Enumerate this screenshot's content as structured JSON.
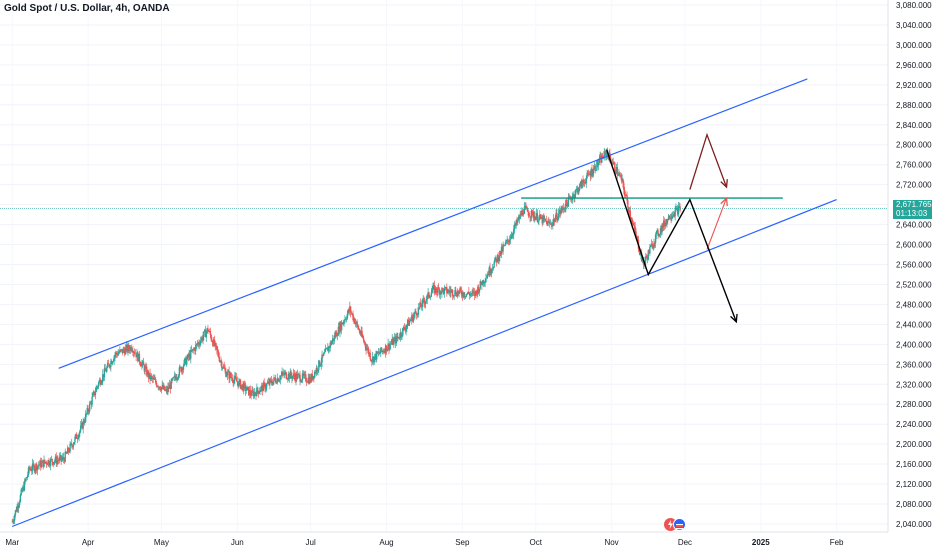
{
  "header": {
    "title": "Gold Spot / U.S. Dollar, 4h, OANDA"
  },
  "current_price": {
    "value": "2,671.765",
    "countdown": "01:13:03"
  },
  "icons": {
    "flash": "flash-icon",
    "flag": "flag-icon"
  },
  "colors": {
    "up": "#26a69a",
    "down": "#ef5350",
    "channel": "#2962ff",
    "resistance": "#089981",
    "projection_up": "#7f1d1d",
    "projection_down": "#000000",
    "projection_alt": "#ef5350"
  },
  "chart_data": {
    "type": "candlestick",
    "title": "Gold Spot / U.S. Dollar, 4h, OANDA",
    "x_ticks": [
      "Mar",
      "Apr",
      "May",
      "Jun",
      "Jul",
      "Aug",
      "Sep",
      "Oct",
      "Nov",
      "Dec",
      "2025",
      "Feb"
    ],
    "y_ticks": [
      "3,080.000",
      "3,040.000",
      "3,000.000",
      "2,960.000",
      "2,920.000",
      "2,880.000",
      "2,840.000",
      "2,800.000",
      "2,760.000",
      "2,720.000",
      "2,680.000",
      "2,640.000",
      "2,600.000",
      "2,560.000",
      "2,520.000",
      "2,480.000",
      "2,440.000",
      "2,400.000",
      "2,360.000",
      "2,320.000",
      "2,280.000",
      "2,240.000",
      "2,200.000",
      "2,160.000",
      "2,120.000",
      "2,080.000",
      "2,040.000"
    ],
    "ylim": [
      2030,
      3090
    ],
    "price_path": [
      {
        "date": "2024-03-01",
        "price": 2045
      },
      {
        "date": "2024-03-08",
        "price": 2150
      },
      {
        "date": "2024-03-15",
        "price": 2165
      },
      {
        "date": "2024-03-22",
        "price": 2170
      },
      {
        "date": "2024-03-29",
        "price": 2230
      },
      {
        "date": "2024-04-05",
        "price": 2320
      },
      {
        "date": "2024-04-12",
        "price": 2380
      },
      {
        "date": "2024-04-19",
        "price": 2395
      },
      {
        "date": "2024-04-26",
        "price": 2335
      },
      {
        "date": "2024-05-03",
        "price": 2305
      },
      {
        "date": "2024-05-10",
        "price": 2360
      },
      {
        "date": "2024-05-20",
        "price": 2430
      },
      {
        "date": "2024-05-27",
        "price": 2345
      },
      {
        "date": "2024-06-07",
        "price": 2300
      },
      {
        "date": "2024-06-20",
        "price": 2340
      },
      {
        "date": "2024-07-01",
        "price": 2330
      },
      {
        "date": "2024-07-17",
        "price": 2470
      },
      {
        "date": "2024-07-26",
        "price": 2370
      },
      {
        "date": "2024-08-05",
        "price": 2410
      },
      {
        "date": "2024-08-20",
        "price": 2510
      },
      {
        "date": "2024-09-06",
        "price": 2500
      },
      {
        "date": "2024-09-20",
        "price": 2610
      },
      {
        "date": "2024-09-26",
        "price": 2670
      },
      {
        "date": "2024-10-07",
        "price": 2640
      },
      {
        "date": "2024-10-18",
        "price": 2710
      },
      {
        "date": "2024-10-30",
        "price": 2785
      },
      {
        "date": "2024-11-05",
        "price": 2730
      },
      {
        "date": "2024-11-14",
        "price": 2560
      },
      {
        "date": "2024-11-19",
        "price": 2615
      },
      {
        "date": "2024-11-25",
        "price": 2660
      },
      {
        "date": "2024-11-29",
        "price": 2672
      }
    ],
    "current_price": 2671.765,
    "drawings": {
      "channel_upper": [
        {
          "date": "2024-03-20",
          "price": 2352
        },
        {
          "date": "2025-01-20",
          "price": 2932
        }
      ],
      "channel_lower": [
        {
          "date": "2024-03-01",
          "price": 2035
        },
        {
          "date": "2025-02-01",
          "price": 2690
        }
      ],
      "resistance": [
        {
          "date": "2024-09-25",
          "price": 2693
        },
        {
          "date": "2025-01-10",
          "price": 2693
        }
      ],
      "projection_up": [
        {
          "date": "2024-12-03",
          "price": 2710
        },
        {
          "date": "2024-12-10",
          "price": 2820
        },
        {
          "date": "2024-12-18",
          "price": 2715
        }
      ],
      "projection_alt": [
        {
          "date": "2024-12-10",
          "price": 2590
        },
        {
          "date": "2024-12-18",
          "price": 2693
        }
      ],
      "projection_main": [
        {
          "date": "2024-10-30",
          "price": 2790
        },
        {
          "date": "2024-11-16",
          "price": 2540
        },
        {
          "date": "2024-12-03",
          "price": 2690
        },
        {
          "date": "2024-12-22",
          "price": 2445
        }
      ]
    }
  }
}
